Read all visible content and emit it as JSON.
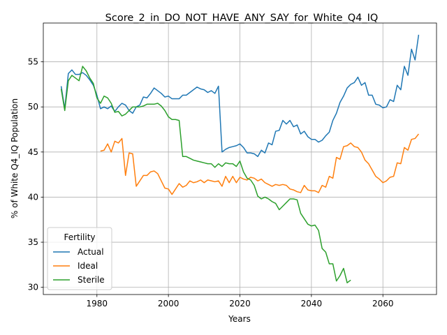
{
  "chart_data": {
    "type": "line",
    "title": "Score_2_in_DO_NOT_HAVE_ANY_SAY_for_White_Q4_IQ",
    "xlabel": "Years",
    "ylabel": "% of White Q4_IQ Population",
    "xlim": [
      1965,
      2075
    ],
    "ylim": [
      29.2,
      59.3
    ],
    "xticks": [
      1980,
      2000,
      2020,
      2040,
      2060
    ],
    "yticks": [
      30,
      35,
      40,
      45,
      50,
      55
    ],
    "grid": true,
    "legend": {
      "title": "Fertility",
      "placement": "lower-left"
    },
    "series": [
      {
        "name": "Actual",
        "color": "#1f77b4",
        "x": [
          1970,
          1971,
          1972,
          1973,
          1974,
          1975,
          1976,
          1977,
          1978,
          1979,
          1980,
          1981,
          1982,
          1983,
          1984,
          1985,
          1986,
          1987,
          1988,
          1989,
          1990,
          1991,
          1992,
          1993,
          1994,
          1995,
          1996,
          1997,
          1998,
          1999,
          2000,
          2001,
          2002,
          2003,
          2004,
          2005,
          2006,
          2007,
          2008,
          2009,
          2010,
          2011,
          2012,
          2013,
          2014,
          2015,
          2016,
          2017,
          2018,
          2019,
          2020,
          2021,
          2022,
          2023,
          2024,
          2025,
          2026,
          2027,
          2028,
          2029,
          2030,
          2031,
          2032,
          2033,
          2034,
          2035,
          2036,
          2037,
          2038,
          2039,
          2040,
          2041,
          2042,
          2043,
          2044,
          2045,
          2046,
          2047,
          2048,
          2049,
          2050,
          2051,
          2052,
          2053,
          2054,
          2055,
          2056,
          2057,
          2058,
          2059,
          2060,
          2061,
          2062,
          2063,
          2064,
          2065,
          2066,
          2067,
          2068,
          2069,
          2070
        ],
        "y": [
          52.3,
          49.8,
          53.7,
          54.1,
          53.6,
          53.6,
          53.8,
          53.5,
          53.0,
          52.4,
          51.3,
          49.8,
          50.0,
          49.8,
          50.1,
          49.5,
          50.0,
          50.4,
          50.2,
          49.6,
          49.3,
          50.0,
          50.2,
          51.1,
          51.0,
          51.5,
          52.1,
          51.8,
          51.5,
          51.1,
          51.2,
          50.9,
          50.9,
          50.9,
          51.3,
          51.3,
          51.6,
          51.9,
          52.2,
          52.0,
          51.9,
          51.6,
          51.8,
          51.5,
          52.3,
          45.0,
          45.3,
          45.5,
          45.6,
          45.7,
          45.9,
          45.5,
          44.9,
          44.9,
          44.8,
          44.5,
          45.2,
          44.9,
          46.0,
          45.8,
          47.3,
          47.4,
          48.5,
          48.1,
          48.5,
          47.8,
          48.0,
          47.0,
          47.3,
          46.7,
          46.4,
          46.4,
          46.1,
          46.3,
          46.8,
          47.2,
          48.5,
          49.3,
          50.5,
          51.2,
          52.1,
          52.5,
          52.7,
          53.3,
          52.4,
          52.7,
          51.3,
          51.3,
          50.3,
          50.2,
          49.9,
          50.0,
          50.8,
          50.6,
          52.4,
          51.9,
          54.5,
          53.5,
          56.4,
          55.2,
          58.0
        ]
      },
      {
        "name": "Ideal",
        "color": "#ff7f0e",
        "x": [
          1981,
          1982,
          1983,
          1984,
          1985,
          1986,
          1987,
          1988,
          1989,
          1990,
          1991,
          1992,
          1993,
          1994,
          1995,
          1996,
          1997,
          1998,
          1999,
          2000,
          2001,
          2002,
          2003,
          2004,
          2005,
          2006,
          2007,
          2008,
          2009,
          2010,
          2011,
          2012,
          2013,
          2014,
          2015,
          2016,
          2017,
          2018,
          2019,
          2020,
          2021,
          2022,
          2023,
          2024,
          2025,
          2026,
          2027,
          2028,
          2029,
          2030,
          2031,
          2032,
          2033,
          2034,
          2035,
          2036,
          2037,
          2038,
          2039,
          2040,
          2041,
          2042,
          2043,
          2044,
          2045,
          2046,
          2047,
          2048,
          2049,
          2050,
          2051,
          2052,
          2053,
          2054,
          2055,
          2056,
          2057,
          2058,
          2059,
          2060,
          2061,
          2062,
          2063,
          2064,
          2065,
          2066,
          2067,
          2068,
          2069,
          2070
        ],
        "y": [
          45.1,
          45.2,
          45.9,
          45.0,
          46.2,
          46.0,
          46.5,
          42.4,
          44.9,
          44.8,
          41.2,
          41.8,
          42.4,
          42.4,
          42.8,
          42.9,
          42.6,
          41.8,
          41.0,
          40.9,
          40.3,
          40.9,
          41.5,
          41.1,
          41.3,
          41.8,
          41.6,
          41.7,
          41.9,
          41.6,
          41.9,
          41.8,
          41.7,
          41.8,
          41.2,
          42.3,
          41.6,
          42.3,
          41.6,
          42.2,
          42.0,
          41.9,
          42.2,
          42.1,
          41.8,
          42.0,
          41.6,
          41.4,
          41.2,
          41.4,
          41.3,
          41.4,
          41.3,
          40.9,
          40.8,
          40.6,
          40.5,
          41.3,
          40.8,
          40.7,
          40.7,
          40.5,
          41.3,
          41.1,
          42.3,
          42.1,
          44.4,
          44.2,
          45.6,
          45.7,
          46.0,
          45.6,
          45.5,
          45.0,
          44.1,
          43.7,
          43.0,
          42.3,
          42.0,
          41.6,
          41.8,
          42.2,
          42.3,
          43.8,
          43.7,
          45.5,
          45.2,
          46.4,
          46.5,
          47.0
        ]
      },
      {
        "name": "Sterile",
        "color": "#2ca02c",
        "x": [
          1970,
          1971,
          1972,
          1973,
          1974,
          1975,
          1976,
          1977,
          1978,
          1979,
          1980,
          1981,
          1982,
          1983,
          1984,
          1985,
          1986,
          1987,
          1988,
          1989,
          1990,
          1991,
          1992,
          1993,
          1994,
          1995,
          1996,
          1997,
          1998,
          1999,
          2000,
          2001,
          2002,
          2003,
          2004,
          2005,
          2006,
          2007,
          2008,
          2009,
          2010,
          2011,
          2012,
          2013,
          2014,
          2015,
          2016,
          2017,
          2018,
          2019,
          2020,
          2021,
          2022,
          2023,
          2024,
          2025,
          2026,
          2027,
          2028,
          2029,
          2030,
          2031,
          2032,
          2033,
          2034,
          2035,
          2036,
          2037,
          2038,
          2039,
          2040,
          2041,
          2042,
          2043,
          2044,
          2045,
          2046,
          2047,
          2048,
          2049,
          2050,
          2051
        ],
        "y": [
          52.0,
          49.6,
          52.9,
          53.5,
          53.2,
          52.9,
          54.5,
          54.0,
          53.2,
          52.6,
          51.0,
          50.4,
          51.2,
          51.0,
          50.4,
          49.4,
          49.5,
          49.0,
          49.2,
          49.6,
          50.0,
          50.0,
          50.0,
          50.1,
          50.3,
          50.3,
          50.3,
          50.4,
          50.1,
          49.6,
          48.9,
          48.6,
          48.6,
          48.5,
          44.5,
          44.5,
          44.3,
          44.1,
          44.0,
          43.9,
          43.8,
          43.7,
          43.7,
          43.3,
          43.7,
          43.4,
          43.8,
          43.7,
          43.7,
          43.4,
          44.0,
          42.8,
          42.1,
          41.9,
          41.3,
          40.1,
          39.8,
          40.0,
          39.8,
          39.5,
          39.3,
          38.6,
          39.0,
          39.4,
          39.8,
          39.8,
          39.7,
          38.2,
          37.6,
          37.0,
          36.8,
          36.9,
          36.3,
          34.3,
          33.9,
          32.6,
          32.6,
          30.7,
          31.3,
          32.1,
          30.5,
          30.8
        ]
      }
    ]
  }
}
